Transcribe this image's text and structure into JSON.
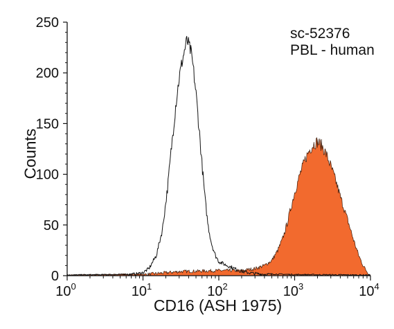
{
  "chart_data": {
    "type": "area",
    "title": "",
    "annotations": [
      "sc-52376",
      "PBL - human"
    ],
    "xlabel": "CD16 (ASH 1975)",
    "ylabel": "Counts",
    "x_scale": "log",
    "xlim": [
      1,
      10000
    ],
    "ylim": [
      0,
      250
    ],
    "x_ticks": [
      1,
      10,
      100,
      1000,
      10000
    ],
    "x_tick_labels": [
      {
        "base": "10",
        "exp": "0"
      },
      {
        "base": "10",
        "exp": "1"
      },
      {
        "base": "10",
        "exp": "2"
      },
      {
        "base": "10",
        "exp": "3"
      },
      {
        "base": "10",
        "exp": "4"
      }
    ],
    "y_ticks": [
      0,
      50,
      100,
      150,
      200,
      250
    ],
    "grid": false,
    "legend": "none",
    "series": [
      {
        "role": "control",
        "style": "outline",
        "color": "#111111",
        "points": [
          [
            1,
            0
          ],
          [
            5,
            0.5
          ],
          [
            8,
            1.5
          ],
          [
            10,
            3
          ],
          [
            12,
            7
          ],
          [
            15,
            20
          ],
          [
            18,
            45
          ],
          [
            21,
            85
          ],
          [
            24,
            130
          ],
          [
            27,
            168
          ],
          [
            30,
            195
          ],
          [
            33,
            212
          ],
          [
            36,
            225
          ],
          [
            38,
            232
          ],
          [
            40,
            228
          ],
          [
            43,
            220
          ],
          [
            46,
            205
          ],
          [
            50,
            180
          ],
          [
            55,
            145
          ],
          [
            60,
            110
          ],
          [
            66,
            75
          ],
          [
            72,
            50
          ],
          [
            80,
            32
          ],
          [
            90,
            20
          ],
          [
            100,
            14
          ],
          [
            120,
            11
          ],
          [
            150,
            8
          ],
          [
            200,
            4
          ],
          [
            300,
            2
          ],
          [
            500,
            1
          ],
          [
            1000,
            0.5
          ],
          [
            10000,
            0
          ]
        ]
      },
      {
        "role": "stained",
        "style": "filled",
        "color": "#f26a2e",
        "points": [
          [
            1,
            0
          ],
          [
            10,
            1
          ],
          [
            30,
            4
          ],
          [
            100,
            5
          ],
          [
            200,
            5
          ],
          [
            300,
            7
          ],
          [
            400,
            10
          ],
          [
            500,
            15
          ],
          [
            600,
            25
          ],
          [
            700,
            37
          ],
          [
            800,
            52
          ],
          [
            900,
            68
          ],
          [
            1000,
            82
          ],
          [
            1200,
            102
          ],
          [
            1400,
            116
          ],
          [
            1600,
            125
          ],
          [
            1800,
            130
          ],
          [
            2000,
            132
          ],
          [
            2300,
            128
          ],
          [
            2600,
            120
          ],
          [
            3000,
            108
          ],
          [
            3500,
            93
          ],
          [
            4000,
            78
          ],
          [
            5000,
            55
          ],
          [
            6000,
            35
          ],
          [
            7000,
            20
          ],
          [
            8000,
            10
          ],
          [
            9000,
            4
          ],
          [
            10000,
            0
          ]
        ]
      }
    ]
  }
}
